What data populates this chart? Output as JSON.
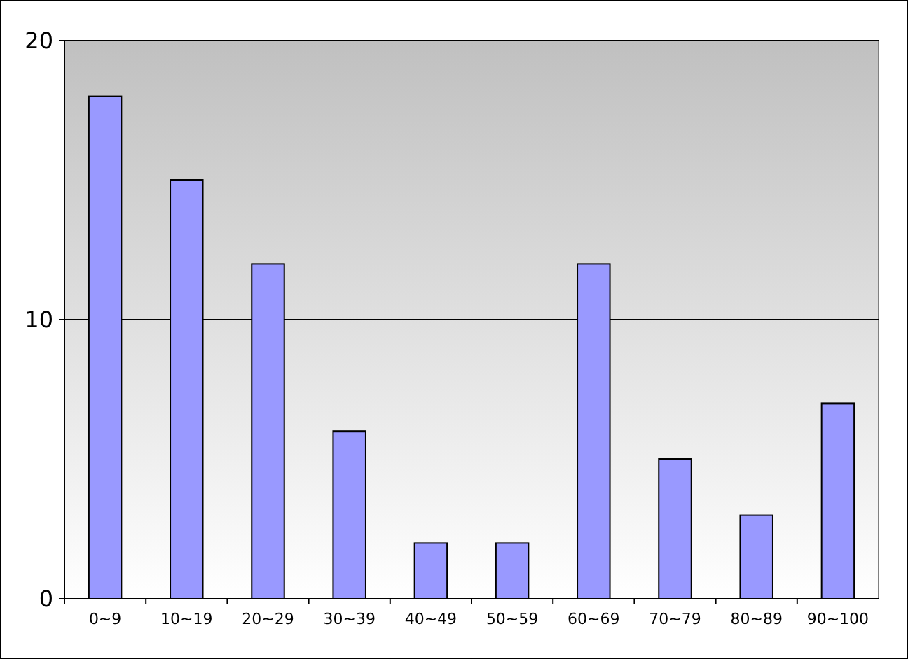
{
  "chart_data": {
    "type": "bar",
    "categories": [
      "0~9",
      "10~19",
      "20~29",
      "30~39",
      "40~49",
      "50~59",
      "60~69",
      "70~79",
      "80~89",
      "90~100"
    ],
    "values": [
      18,
      15,
      12,
      6,
      2,
      2,
      12,
      5,
      3,
      7
    ],
    "color": "#9999ff",
    "ylim": [
      0,
      20
    ],
    "yticks": [
      0,
      10,
      20
    ],
    "grid": "y"
  }
}
